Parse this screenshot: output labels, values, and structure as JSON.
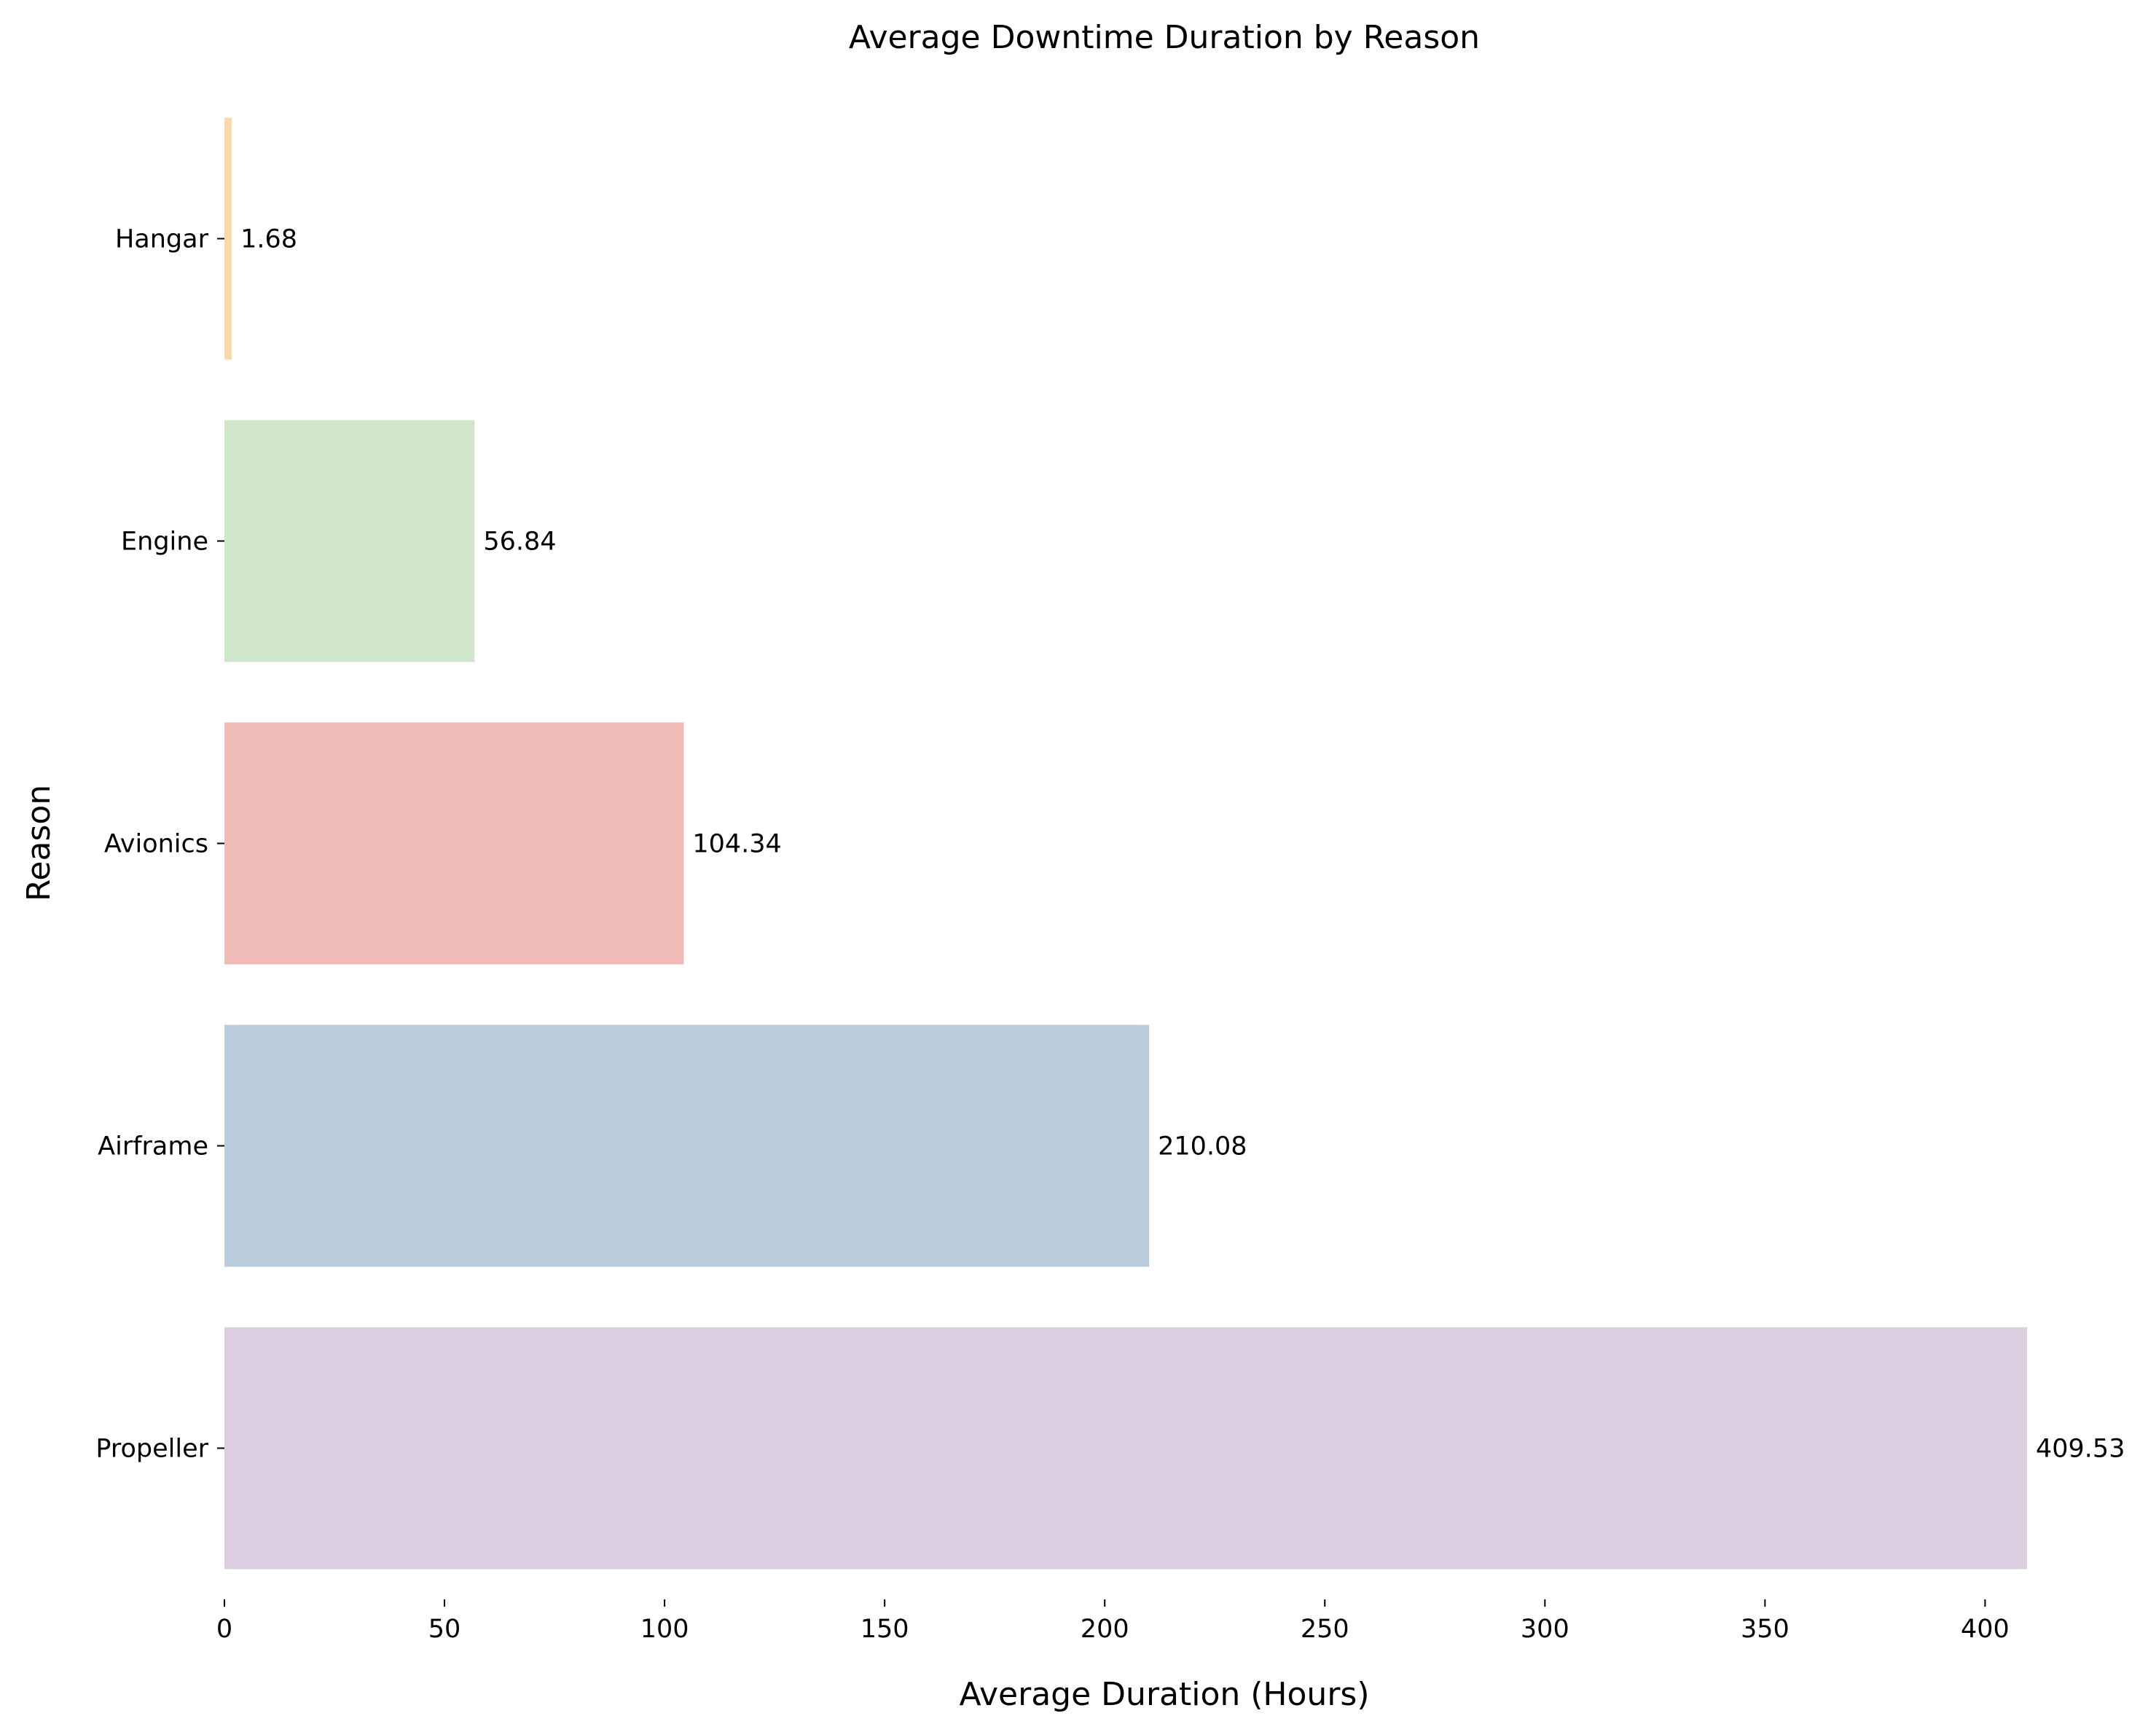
{
  "chart_data": {
    "type": "bar",
    "orientation": "horizontal",
    "title": "Average Downtime Duration by Reason",
    "xlabel": "Average Duration (Hours)",
    "ylabel": "Reason",
    "categories": [
      "Hangar",
      "Engine",
      "Avionics",
      "Airframe",
      "Propeller"
    ],
    "values": [
      1.68,
      56.84,
      104.34,
      210.08,
      409.53
    ],
    "value_labels": [
      "1.68",
      "56.84",
      "104.34",
      "210.08",
      "409.53"
    ],
    "colors": [
      "#fcd9a8",
      "#d0e6cb",
      "#f0bab7",
      "#b9ccdc",
      "#dccde0"
    ],
    "xlim": [
      0,
      409.53
    ],
    "xticks": [
      0,
      50,
      100,
      150,
      200,
      250,
      300,
      350,
      400
    ],
    "xtick_labels": [
      "0",
      "50",
      "100",
      "150",
      "200",
      "250",
      "300",
      "350",
      "400"
    ],
    "grid": false,
    "legend": "none"
  }
}
